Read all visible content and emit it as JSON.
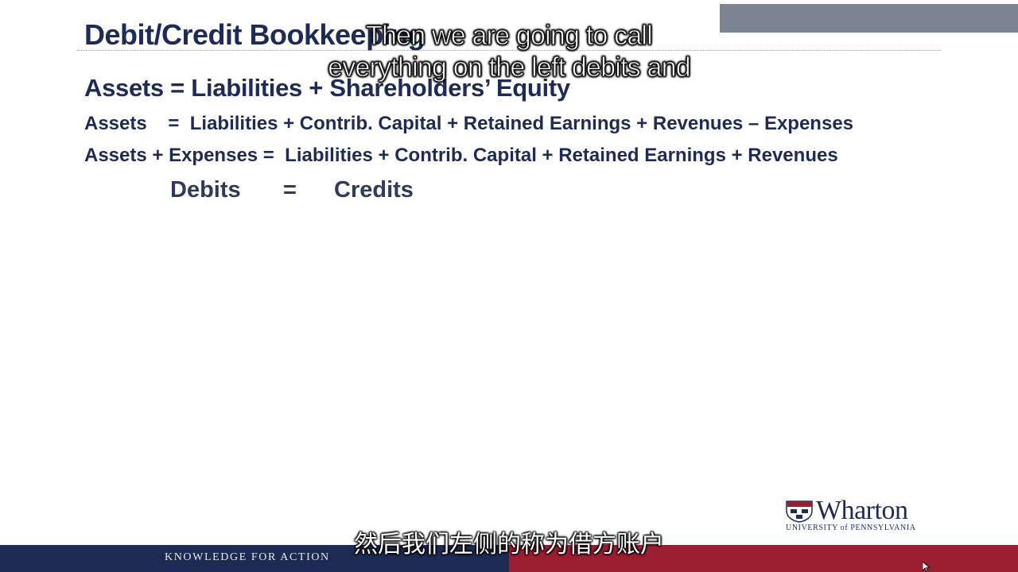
{
  "slide": {
    "title": "Debit/Credit Bookkeeping",
    "equation_1": "Assets = Liabilities + Shareholders’ Equity",
    "equation_2": "Assets    =  Liabilities + Contrib. Capital + Retained Earnings + Revenues – Expenses",
    "equation_3": "Assets + Expenses =  Liabilities + Contrib. Capital + Retained Earnings + Revenues",
    "debits_label": "Debits",
    "equals": "=",
    "credits_label": "Credits"
  },
  "subtitles": {
    "english_line_1": "Then we are going to call",
    "english_line_2": "everything on the left debits and",
    "chinese": "然后我们左侧的称为借方账户"
  },
  "branding": {
    "logo_name": "Wharton",
    "logo_subtitle": "UNIVERSITY of PENNSYLVANIA",
    "footer_tagline": "KNOWLEDGE FOR ACTION"
  },
  "colors": {
    "navy": "#1e2a5a",
    "footer_blue": "#1c2a54",
    "footer_red": "#9c1c30",
    "top_bar_gray": "#7d8592"
  },
  "icons": {
    "logo_shield": "shield-icon",
    "cursor": "cursor-icon"
  }
}
